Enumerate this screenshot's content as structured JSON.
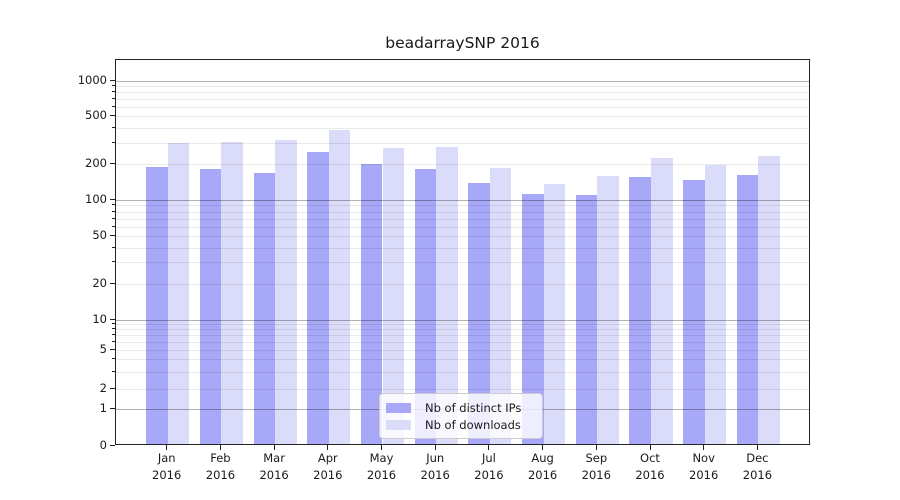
{
  "chart_data": {
    "type": "bar",
    "title": "beadarraySNP 2016",
    "categories": [
      "Jan",
      "Feb",
      "Mar",
      "Apr",
      "May",
      "Jun",
      "Jul",
      "Aug",
      "Sep",
      "Oct",
      "Nov",
      "Dec"
    ],
    "year_label": "2016",
    "series": [
      {
        "name": "Nb of distinct IPs",
        "color": "#a8a8f8",
        "values": [
          183,
          175,
          165,
          245,
          194,
          175,
          136,
          110,
          107,
          151,
          144,
          156
        ]
      },
      {
        "name": "Nb of downloads",
        "color": "#dbdbfa",
        "values": [
          290,
          296,
          306,
          372,
          266,
          268,
          180,
          133,
          154,
          218,
          191,
          226
        ]
      }
    ],
    "yticks": [
      0,
      1,
      2,
      5,
      10,
      20,
      50,
      100,
      200,
      500,
      1000
    ],
    "yscale": "symlog",
    "ylim": [
      0,
      1500
    ],
    "grid": true,
    "legend_position": "lower-center",
    "axis_color": "#222222",
    "grid_minor_color": "rgba(0,0,0,0.085)",
    "grid_decade_color": "rgba(0,0,0,0.30)",
    "grid_unit_line_color": "rgba(70,70,210,0.22)"
  }
}
